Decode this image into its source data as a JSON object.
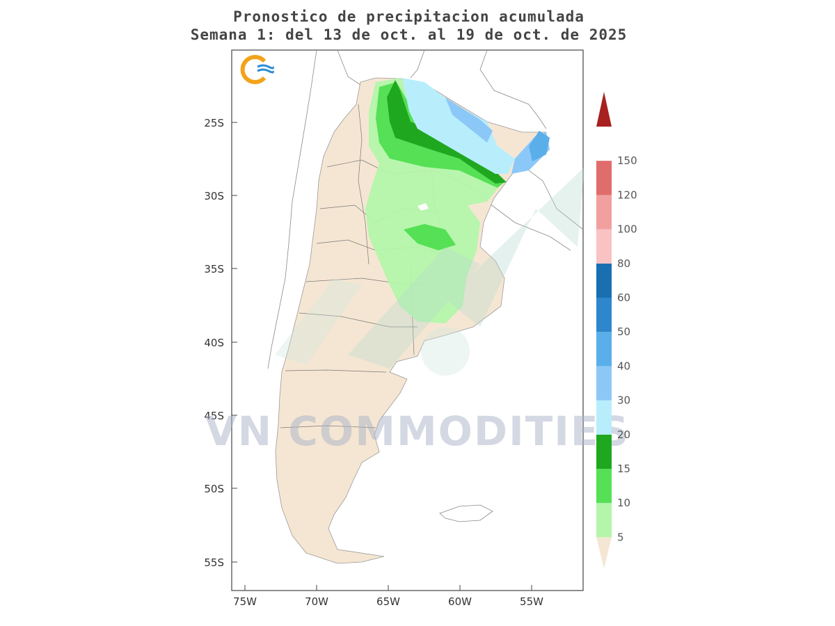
{
  "title_line1": "Pronostico de precipitacion acumulada",
  "title_line2": "Semana 1: del 13 de oct. al 19 de oct. de 2025",
  "watermark": "VN COMMODITIES",
  "logo_icon": "wave-sun-logo-icon",
  "lat_labels": [
    "25S",
    "30S",
    "35S",
    "40S",
    "45S",
    "50S",
    "55S"
  ],
  "lon_labels": [
    "75W",
    "70W",
    "65W",
    "60W",
    "55W"
  ],
  "colorbar": {
    "labels": [
      "5",
      "10",
      "15",
      "20",
      "30",
      "40",
      "50",
      "60",
      "80",
      "100",
      "120",
      "150"
    ],
    "colors": [
      "#f5e6d3",
      "#b4f5ab",
      "#55e055",
      "#1fa81f",
      "#b8eefc",
      "#8cc8f7",
      "#5aaee9",
      "#2e86cc",
      "#1a6fb0",
      "#f9c3c3",
      "#f1a09f",
      "#e06c6c",
      "#cc3838",
      "#a82020"
    ]
  }
}
